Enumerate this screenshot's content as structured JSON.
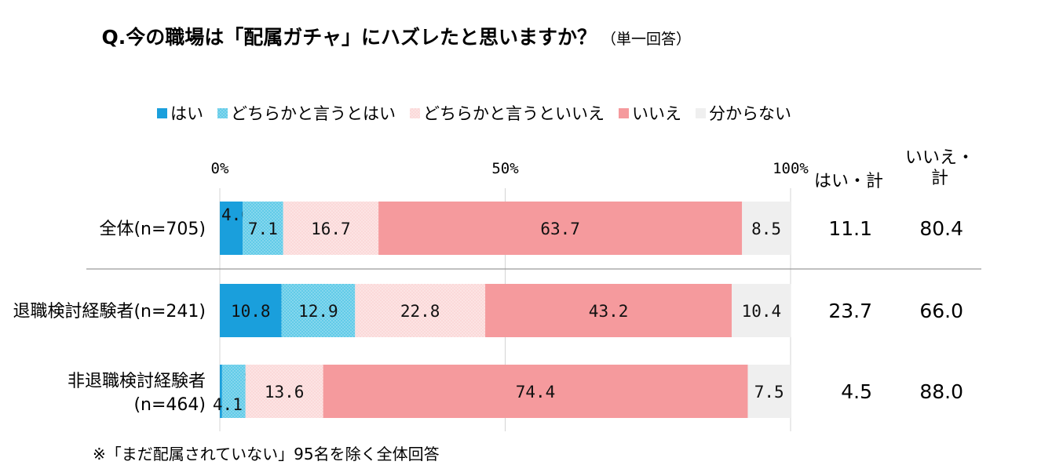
{
  "chart_data": {
    "type": "bar",
    "stacked": "horizontal-100%",
    "title": "Q.今の職場は「配属ガチャ」にハズレたと思いますか？",
    "subtitle": "（単一回答）",
    "legend_placement": "top",
    "x_ticks": [
      "0%",
      "50%",
      "100%"
    ],
    "xlim": [
      0,
      100
    ],
    "categories": [
      "全体(n=705)",
      "退職検討経験者(n=241)",
      "非退職検討経験者(n=464)"
    ],
    "category_lines": [
      [
        "全体(n=705)"
      ],
      [
        "退職検討経験者(n=241)"
      ],
      [
        "非退職検討経験者",
        "(n=464)"
      ]
    ],
    "series": [
      {
        "name": "はい",
        "color": "#1a9fdc",
        "pattern": "solid",
        "values": [
          4.0,
          10.8,
          0.4
        ],
        "labels": [
          "4.0",
          "10.8",
          "0.4"
        ]
      },
      {
        "name": "どちらかと言うとはい",
        "color": "#62cbe8",
        "pattern": "dotted",
        "values": [
          7.1,
          12.9,
          4.1
        ],
        "labels": [
          "7.1",
          "12.9",
          "4.1"
        ]
      },
      {
        "name": "どちらかと言うといいえ",
        "color": "#fbd9d9",
        "pattern": "dotted",
        "values": [
          16.7,
          22.8,
          13.6
        ],
        "labels": [
          "16.7",
          "22.8",
          "13.6"
        ]
      },
      {
        "name": "いいえ",
        "color": "#f59a9d",
        "pattern": "solid",
        "values": [
          63.7,
          43.2,
          74.4
        ],
        "labels": [
          "63.7",
          "43.2",
          "74.4"
        ]
      },
      {
        "name": "分からない",
        "color": "#efefef",
        "pattern": "solid",
        "values": [
          8.5,
          10.4,
          7.5
        ],
        "labels": [
          "8.5",
          "10.4",
          "7.5"
        ]
      }
    ],
    "summary_headers": [
      "はい・計",
      "いいえ・計"
    ],
    "summary_header_lines": [
      [
        "はい・計"
      ],
      [
        "いいえ・",
        "計"
      ]
    ],
    "summary_values": [
      [
        "11.1",
        "80.4"
      ],
      [
        "23.7",
        "66.0"
      ],
      [
        "4.5",
        "88.0"
      ]
    ],
    "note": "※「まだ配属されていない」95名を除く全体回答",
    "grid": true
  }
}
